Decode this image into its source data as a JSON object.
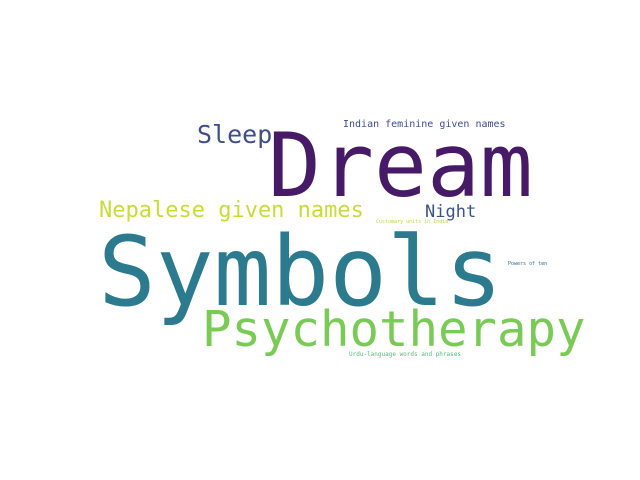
{
  "word_cloud": {
    "words": [
      {
        "id": "dream",
        "text": "Dream",
        "color": "#461A66"
      },
      {
        "id": "symbols",
        "text": "Symbols",
        "color": "#2B7A8E"
      },
      {
        "id": "psychotherapy",
        "text": "Psychotherapy",
        "color": "#7ACB56"
      },
      {
        "id": "nepalese",
        "text": "Nepalese given names",
        "color": "#C5DD3B"
      },
      {
        "id": "sleep",
        "text": "Sleep",
        "color": "#3E4E86"
      },
      {
        "id": "night",
        "text": "Night",
        "color": "#3C5385"
      },
      {
        "id": "indian",
        "text": "Indian feminine given names",
        "color": "#3F4D8C"
      },
      {
        "id": "customary",
        "text": "Customary units in India",
        "color": "#B9DB45"
      },
      {
        "id": "powers",
        "text": "Powers of ten",
        "color": "#2C6D8E"
      },
      {
        "id": "urdu",
        "text": "Urdu-language words and phrases",
        "color": "#4FBE7A"
      }
    ]
  }
}
